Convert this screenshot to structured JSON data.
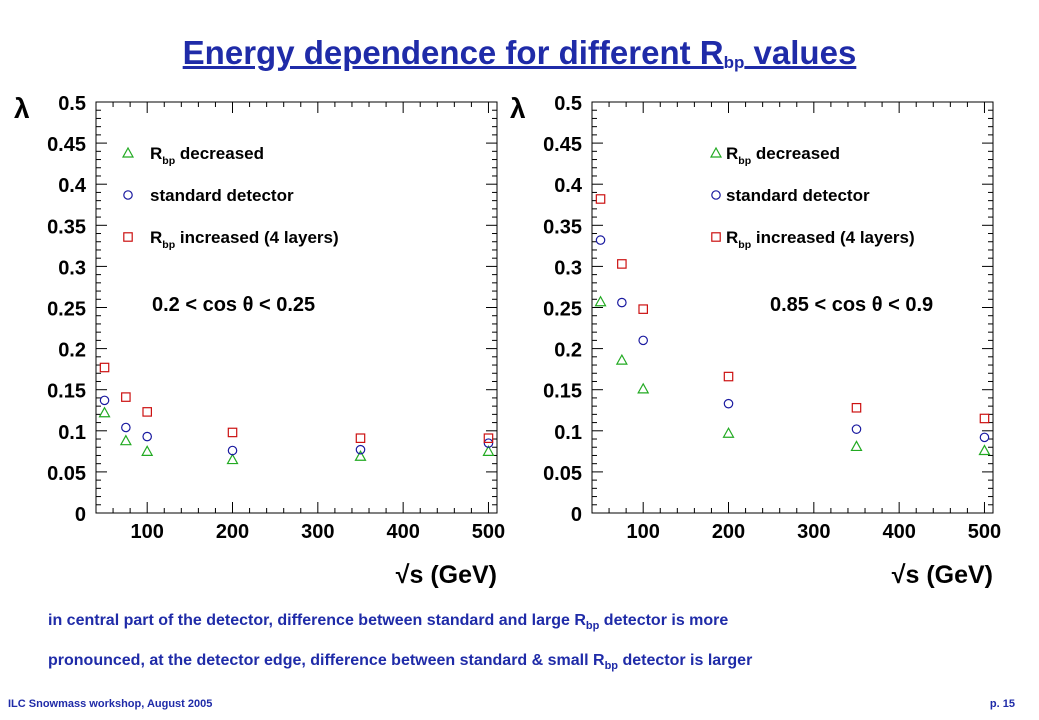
{
  "slide": {
    "title_main": "Energy dependence for different R",
    "title_sub": "bp",
    "title_end": " values",
    "caption_line1_a": "in central part of the detector, difference between standard and large R",
    "caption_line1_sub": "bp",
    "caption_line1_b": " detector is more",
    "caption_line2_a": "pronounced, at the detector edge, difference between standard & small R",
    "caption_line2_sub": "bp",
    "caption_line2_b": " detector is larger",
    "footer_left": "ILC Snowmass workshop, August 2005",
    "footer_right": "p. 15"
  },
  "colors": {
    "title": "#1f2ba8",
    "decreased": "#22aa22",
    "standard": "#1a1aa0",
    "increased": "#cc1111"
  },
  "chart_data": [
    {
      "type": "scatter",
      "ylabel": "λ",
      "xlabel": "√s (GeV)",
      "xlim": [
        40,
        510
      ],
      "ylim": [
        0,
        0.5
      ],
      "xticks": [
        100,
        200,
        300,
        400,
        500
      ],
      "yticks": [
        0,
        0.05,
        0.1,
        0.15,
        0.2,
        0.25,
        0.3,
        0.35,
        0.4,
        0.45,
        0.5
      ],
      "ytick_labels": [
        "0",
        "0.05",
        "0.1",
        "0.15",
        "0.2",
        "0.25",
        "0.3",
        "0.35",
        "0.4",
        "0.45",
        "0.5"
      ],
      "annotation": "0.2 < cos θ < 0.25",
      "legend": [
        {
          "marker": "triangle",
          "text": "R",
          "sub": "bp",
          "rest": " decreased"
        },
        {
          "marker": "circle",
          "text": "standard detector",
          "sub": "",
          "rest": ""
        },
        {
          "marker": "square",
          "text": "R",
          "sub": "bp",
          "rest": " increased (4 layers)"
        }
      ],
      "series": [
        {
          "marker": "triangle",
          "x": [
            50,
            75,
            100,
            200,
            350,
            500
          ],
          "y": [
            0.122,
            0.088,
            0.075,
            0.065,
            0.069,
            0.075
          ]
        },
        {
          "marker": "circle",
          "x": [
            50,
            75,
            100,
            200,
            350,
            500
          ],
          "y": [
            0.137,
            0.104,
            0.093,
            0.076,
            0.077,
            0.085
          ]
        },
        {
          "marker": "square",
          "x": [
            50,
            75,
            100,
            200,
            350,
            500
          ],
          "y": [
            0.177,
            0.141,
            0.123,
            0.098,
            0.091,
            0.091
          ]
        }
      ]
    },
    {
      "type": "scatter",
      "ylabel": "λ",
      "xlabel": "√s (GeV)",
      "xlim": [
        40,
        510
      ],
      "ylim": [
        0,
        0.5
      ],
      "xticks": [
        100,
        200,
        300,
        400,
        500
      ],
      "yticks": [
        0,
        0.05,
        0.1,
        0.15,
        0.2,
        0.25,
        0.3,
        0.35,
        0.4,
        0.45,
        0.5
      ],
      "ytick_labels": [
        "0",
        "0.05",
        "0.1",
        "0.15",
        "0.2",
        "0.25",
        "0.3",
        "0.35",
        "0.4",
        "0.45",
        "0.5"
      ],
      "annotation": "0.85 < cos θ < 0.9",
      "legend": [
        {
          "marker": "triangle",
          "text": "R",
          "sub": "bp",
          "rest": " decreased"
        },
        {
          "marker": "circle",
          "text": "standard detector",
          "sub": "",
          "rest": ""
        },
        {
          "marker": "square",
          "text": "R",
          "sub": "bp",
          "rest": " increased (4 layers)"
        }
      ],
      "series": [
        {
          "marker": "triangle",
          "x": [
            50,
            75,
            100,
            200,
            350,
            500
          ],
          "y": [
            0.257,
            0.186,
            0.151,
            0.097,
            0.081,
            0.076
          ]
        },
        {
          "marker": "circle",
          "x": [
            50,
            75,
            100,
            200,
            350,
            500
          ],
          "y": [
            0.332,
            0.256,
            0.21,
            0.133,
            0.102,
            0.092
          ]
        },
        {
          "marker": "square",
          "x": [
            50,
            75,
            100,
            200,
            350,
            500
          ],
          "y": [
            0.382,
            0.303,
            0.248,
            0.166,
            0.128,
            0.115
          ]
        }
      ]
    }
  ]
}
